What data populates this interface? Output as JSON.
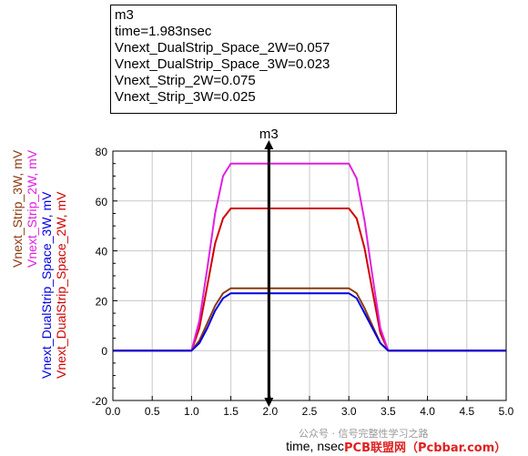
{
  "readout": {
    "marker": "m3",
    "time": "time=1.983nsec",
    "lines": [
      "Vnext_DualStrip_Space_2W=0.057",
      "Vnext_DualStrip_Space_3W=0.023",
      "Vnext_Strip_2W=0.075",
      "Vnext_Strip_3W=0.025"
    ]
  },
  "chart_data": {
    "type": "line",
    "title": "",
    "xlabel": "time, nsec",
    "xlim": [
      0.0,
      5.0
    ],
    "ylim": [
      -20,
      80
    ],
    "x_ticks": [
      "0.0",
      "0.5",
      "1.0",
      "1.5",
      "2.0",
      "2.5",
      "3.0",
      "3.5",
      "4.0",
      "4.5",
      "5.0"
    ],
    "y_ticks": [
      "-20",
      "0",
      "20",
      "40",
      "60",
      "80"
    ],
    "grid": true,
    "marker": {
      "name": "m3",
      "x": 1.983
    },
    "series": [
      {
        "name": "Vnext_Strip_3W, mV",
        "color": "#8b3a10",
        "x": [
          0,
          1.0,
          1.1,
          1.2,
          1.3,
          1.4,
          1.5,
          3.0,
          3.1,
          3.2,
          3.3,
          3.4,
          3.5,
          5.0
        ],
        "y": [
          0,
          0,
          4,
          11,
          18,
          23,
          25,
          25,
          23,
          17,
          10,
          3,
          0,
          0
        ]
      },
      {
        "name": "Vnext_Strip_2W, mV",
        "color": "#e020e0",
        "x": [
          0,
          1.0,
          1.1,
          1.2,
          1.3,
          1.4,
          1.5,
          3.0,
          3.1,
          3.2,
          3.3,
          3.4,
          3.5,
          5.0
        ],
        "y": [
          0,
          0,
          12,
          33,
          55,
          70,
          75,
          75,
          69,
          52,
          30,
          9,
          0,
          0
        ]
      },
      {
        "name": "Vnext_DualStrip_Space_3W, mV",
        "color": "#0000e0",
        "x": [
          0,
          1.0,
          1.1,
          1.2,
          1.3,
          1.4,
          1.5,
          3.0,
          3.1,
          3.2,
          3.3,
          3.4,
          3.5,
          5.0
        ],
        "y": [
          0,
          0,
          3,
          9,
          16,
          21,
          23,
          23,
          21,
          15,
          9,
          3,
          0,
          0
        ]
      },
      {
        "name": "Vnext_DualStrip_Space_2W, mV",
        "color": "#d00000",
        "x": [
          0,
          1.0,
          1.1,
          1.2,
          1.3,
          1.4,
          1.5,
          3.0,
          3.1,
          3.2,
          3.3,
          3.4,
          3.5,
          5.0
        ],
        "y": [
          0,
          0,
          9,
          26,
          43,
          53,
          57,
          57,
          53,
          41,
          24,
          7,
          0,
          0
        ]
      }
    ]
  },
  "watermark": {
    "account": "公众号 · 信号完整性学习之路",
    "site": "PCB联盟网（Pcbbar.com）"
  }
}
